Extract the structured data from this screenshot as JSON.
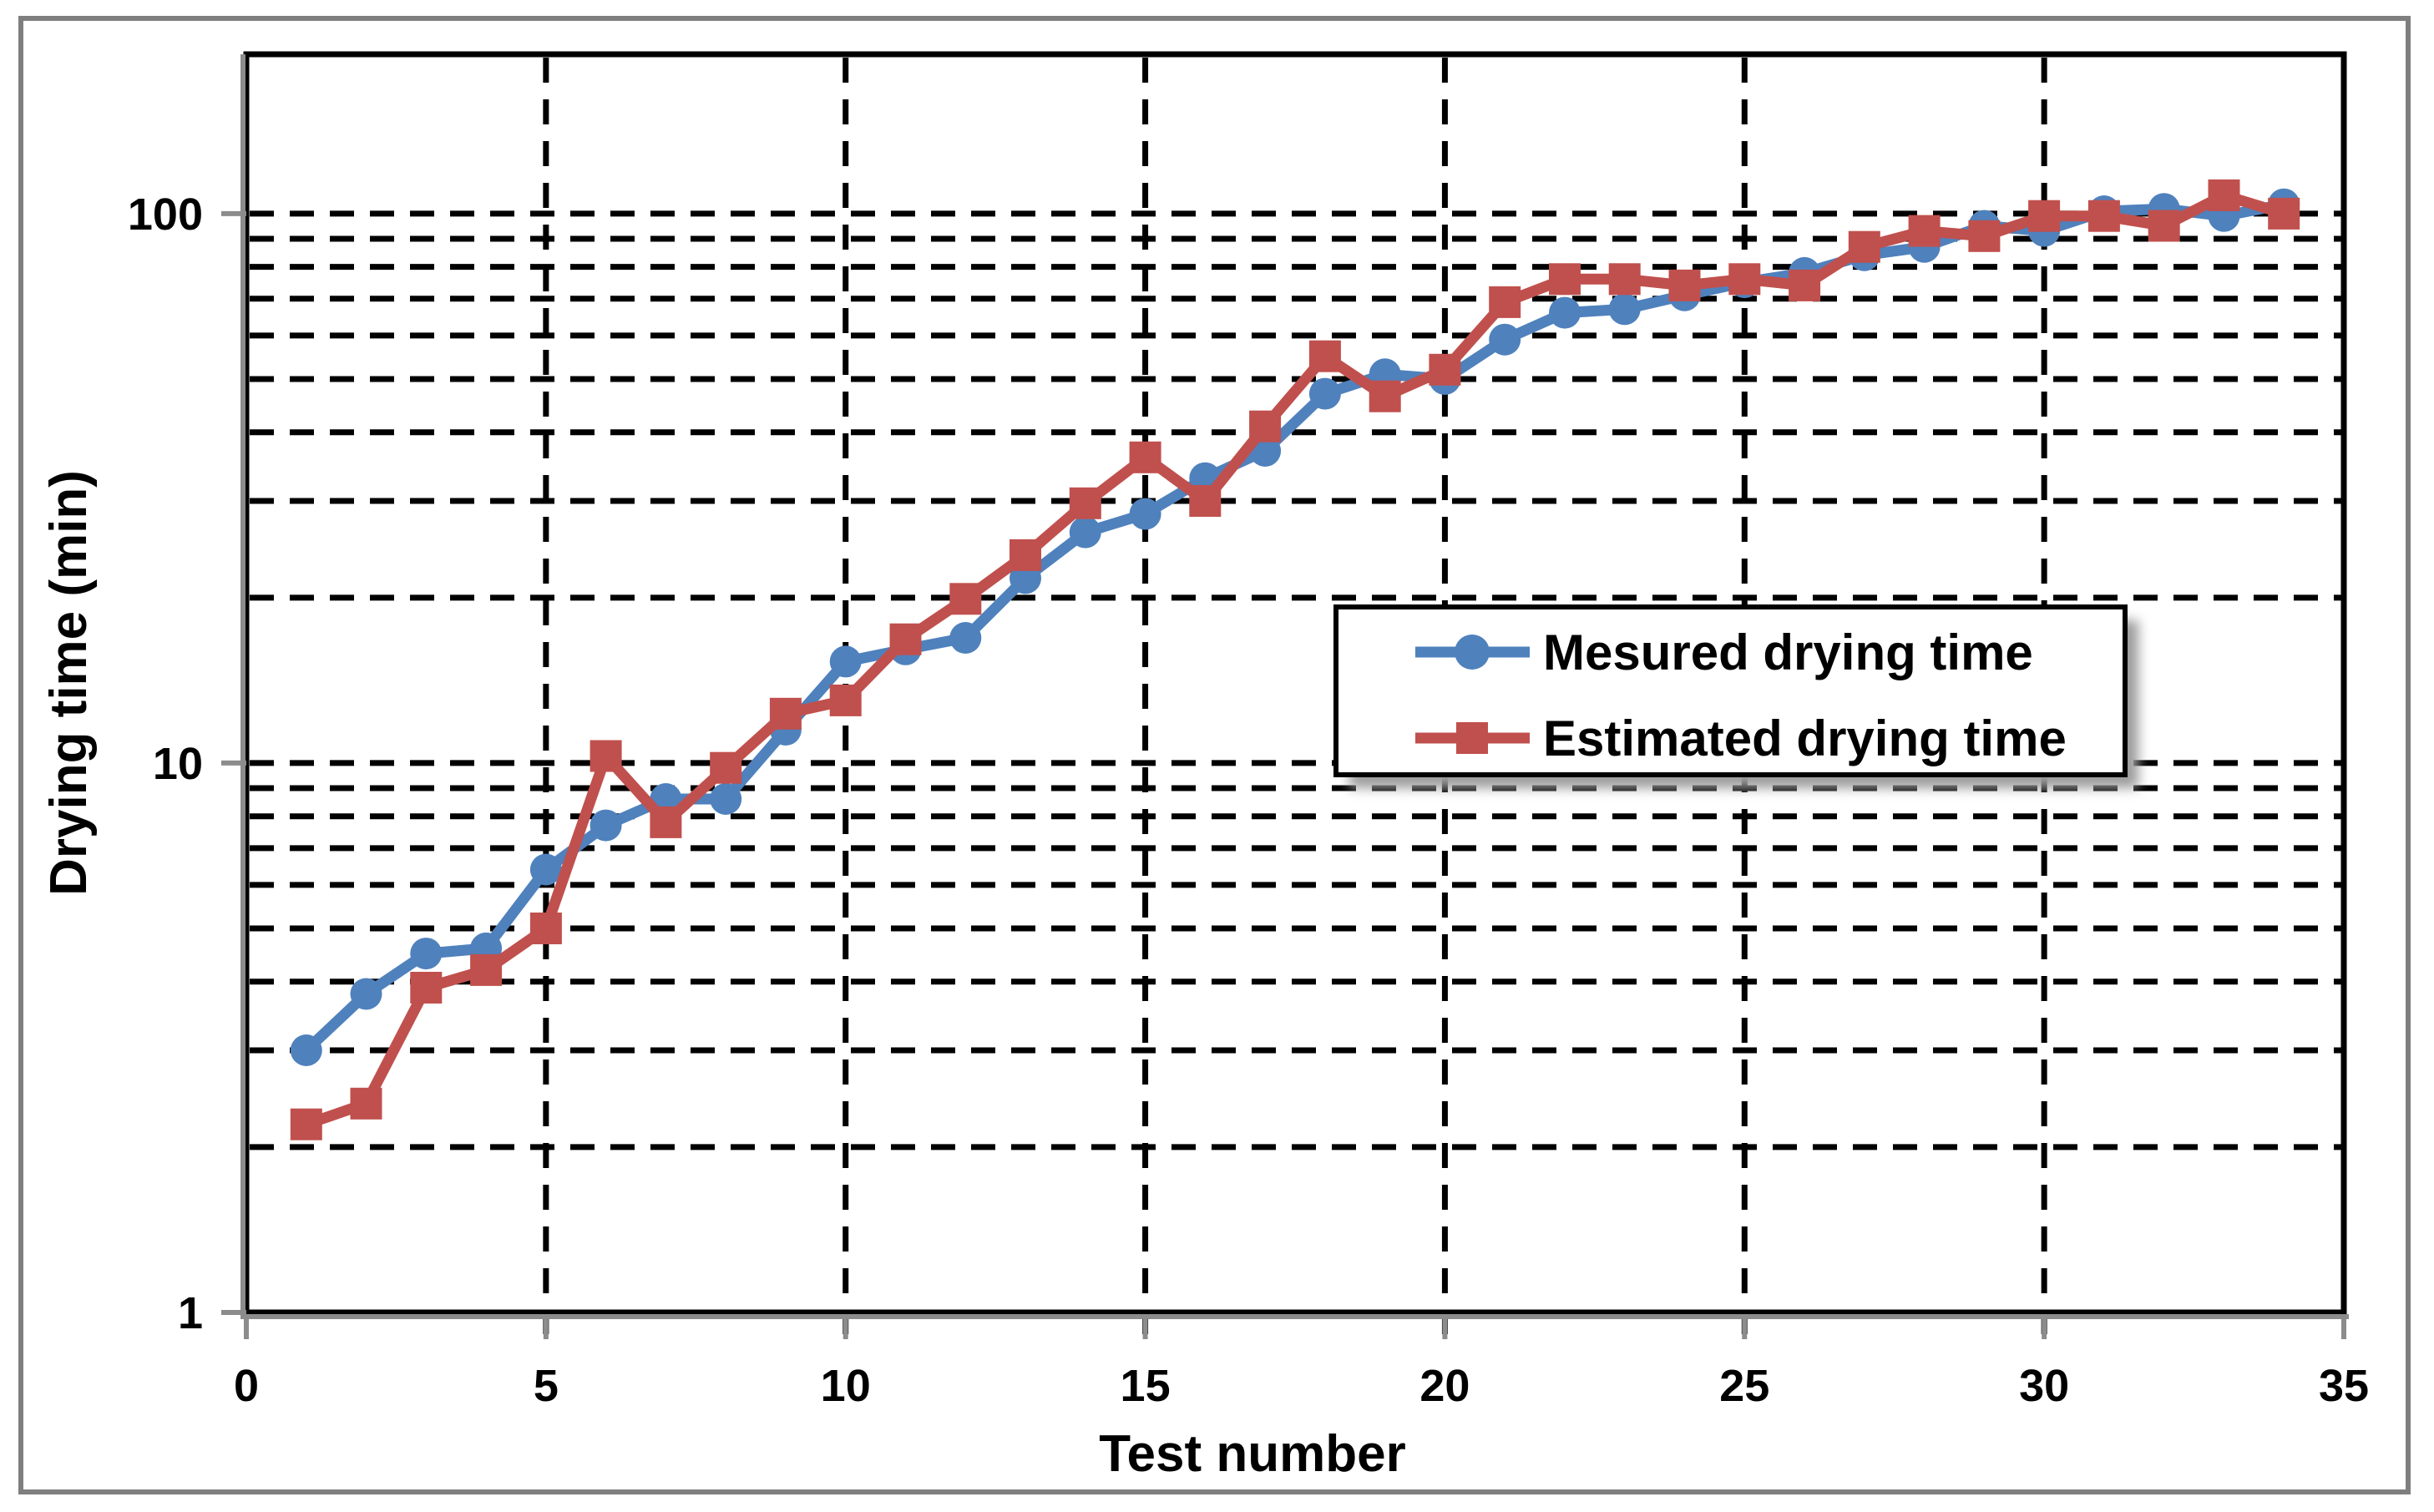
{
  "figure": {
    "background": "#ffffff",
    "outer_border_color": "#7f7f7f",
    "plot_border_color": "#000000",
    "axis_line_color": "#8c8c8c",
    "gridline_color": "#000000"
  },
  "axes": {
    "x_title": "Test number",
    "y_title": "Drying time (min)"
  },
  "legend": {
    "items": [
      {
        "label": "Mesured drying time",
        "color": "#4f81bd",
        "marker": "circle"
      },
      {
        "label": "Estimated drying time",
        "color": "#c0504d",
        "marker": "square"
      }
    ]
  },
  "chart_data": {
    "type": "line",
    "title": "",
    "xlabel": "Test number",
    "ylabel": "Drying time (min)",
    "grid": "dashed",
    "legend_position": "middle-right",
    "x_axis": {
      "min": 0,
      "max": 35,
      "ticks": [
        0,
        5,
        10,
        15,
        20,
        25,
        30,
        35
      ],
      "gridlines": [
        5,
        10,
        15,
        20,
        25,
        30
      ]
    },
    "y_axis": {
      "scale": "log",
      "min": 1,
      "max": 195,
      "ticks": [
        1,
        10,
        100
      ],
      "gridlines": [
        2,
        3,
        4,
        5,
        6,
        7,
        8,
        9,
        10,
        20,
        30,
        40,
        50,
        60,
        70,
        80,
        90,
        100
      ]
    },
    "x": [
      1,
      2,
      3,
      4,
      5,
      6,
      7,
      8,
      9,
      10,
      11,
      12,
      13,
      14,
      15,
      16,
      17,
      18,
      19,
      20,
      21,
      22,
      23,
      24,
      25,
      26,
      27,
      28,
      29,
      30,
      31,
      32,
      33,
      34
    ],
    "series": [
      {
        "name": "Mesured drying time",
        "color": "#4f81bd",
        "marker": "circle",
        "values": [
          3.0,
          3.8,
          4.5,
          4.6,
          6.4,
          7.7,
          8.6,
          8.6,
          11.5,
          15.3,
          16.1,
          16.9,
          21.7,
          26.3,
          28.4,
          33,
          37,
          47,
          51,
          50,
          59,
          66,
          67,
          71,
          75,
          78,
          84,
          87,
          95,
          93,
          101,
          102,
          99,
          104
        ]
      },
      {
        "name": "Estimated drying time",
        "color": "#c0504d",
        "marker": "square",
        "values": [
          2.2,
          2.4,
          3.9,
          4.2,
          5.0,
          10.3,
          7.8,
          9.8,
          12.3,
          13.0,
          16.8,
          19.9,
          23.9,
          29.7,
          36,
          30,
          41,
          55,
          46.5,
          52,
          69,
          76,
          76,
          74,
          76,
          74,
          87,
          93,
          91,
          99,
          99,
          95,
          108,
          100
        ]
      }
    ]
  }
}
